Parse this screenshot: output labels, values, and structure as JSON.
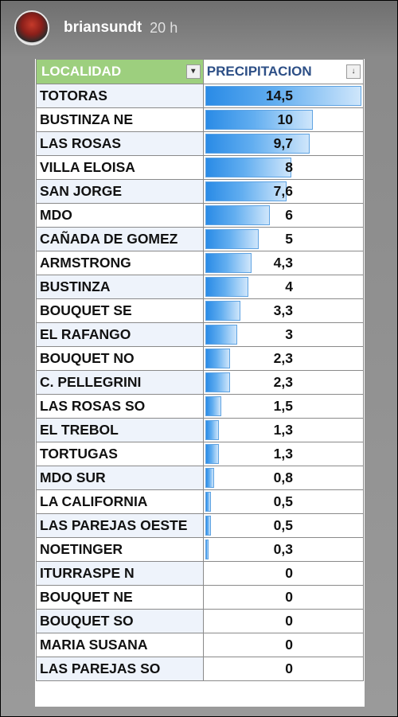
{
  "story": {
    "username": "briansundt",
    "time": "20 h"
  },
  "table": {
    "headers": [
      "LOCALIDAD",
      "PRECIPITACION"
    ],
    "rows": [
      {
        "localidad": "TOTORAS",
        "precipitacion": "14,5",
        "value": 14.5
      },
      {
        "localidad": "BUSTINZA NE",
        "precipitacion": "10",
        "value": 10
      },
      {
        "localidad": "LAS ROSAS",
        "precipitacion": "9,7",
        "value": 9.7
      },
      {
        "localidad": "VILLA ELOISA",
        "precipitacion": "8",
        "value": 8
      },
      {
        "localidad": "SAN JORGE",
        "precipitacion": "7,6",
        "value": 7.6
      },
      {
        "localidad": "MDO",
        "precipitacion": "6",
        "value": 6
      },
      {
        "localidad": "CAÑADA DE GOMEZ",
        "precipitacion": "5",
        "value": 5
      },
      {
        "localidad": "ARMSTRONG",
        "precipitacion": "4,3",
        "value": 4.3
      },
      {
        "localidad": "BUSTINZA",
        "precipitacion": "4",
        "value": 4
      },
      {
        "localidad": "BOUQUET SE",
        "precipitacion": "3,3",
        "value": 3.3
      },
      {
        "localidad": "EL RAFANGO",
        "precipitacion": "3",
        "value": 3
      },
      {
        "localidad": "BOUQUET NO",
        "precipitacion": "2,3",
        "value": 2.3
      },
      {
        "localidad": "C. PELLEGRINI",
        "precipitacion": "2,3",
        "value": 2.3
      },
      {
        "localidad": "LAS ROSAS SO",
        "precipitacion": "1,5",
        "value": 1.5
      },
      {
        "localidad": "EL TREBOL",
        "precipitacion": "1,3",
        "value": 1.3
      },
      {
        "localidad": "TORTUGAS",
        "precipitacion": "1,3",
        "value": 1.3
      },
      {
        "localidad": "MDO SUR",
        "precipitacion": "0,8",
        "value": 0.8
      },
      {
        "localidad": "LA CALIFORNIA",
        "precipitacion": "0,5",
        "value": 0.5
      },
      {
        "localidad": "LAS PAREJAS OESTE",
        "precipitacion": "0,5",
        "value": 0.5
      },
      {
        "localidad": "NOETINGER",
        "precipitacion": "0,3",
        "value": 0.3
      },
      {
        "localidad": "ITURRASPE N",
        "precipitacion": "0",
        "value": 0
      },
      {
        "localidad": "BOUQUET NE",
        "precipitacion": "0",
        "value": 0
      },
      {
        "localidad": "BOUQUET SO",
        "precipitacion": "0",
        "value": 0
      },
      {
        "localidad": "MARIA SUSANA",
        "precipitacion": "0",
        "value": 0
      },
      {
        "localidad": "LAS PAREJAS SO",
        "precipitacion": "0",
        "value": 0
      }
    ]
  },
  "colors": {
    "header_localidad_bg": "#9dcf7e",
    "header_precipitacion_text": "#2d4f86",
    "databar": "#2a8be6"
  }
}
